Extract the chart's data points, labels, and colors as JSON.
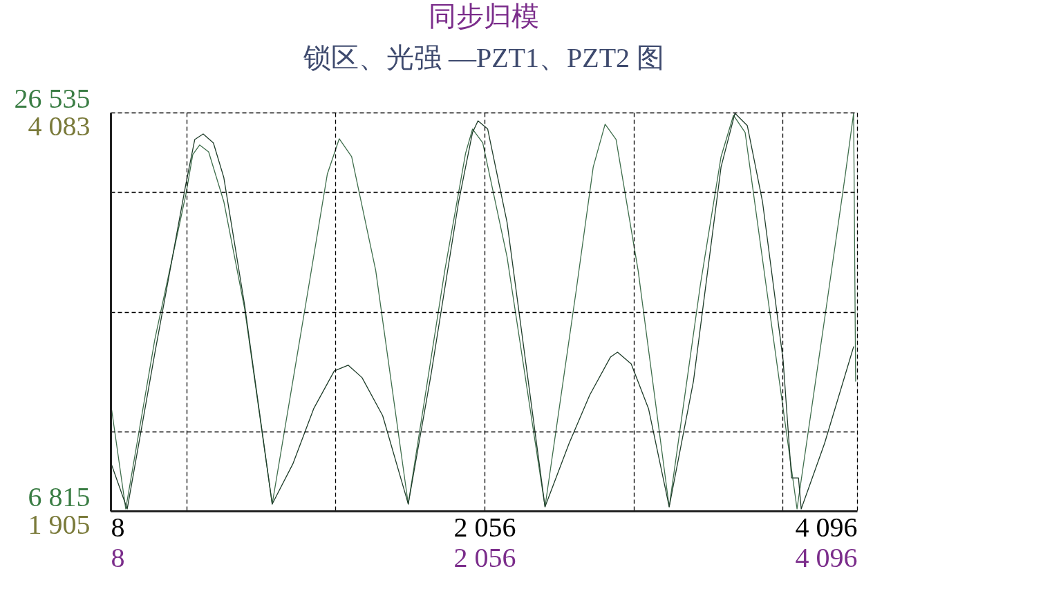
{
  "chart_data": {
    "type": "line",
    "title": "同步归模",
    "subtitle": "锁区、光强  —PZT1、PZT2 图",
    "xlim": [
      8,
      4096
    ],
    "xticks": [
      8,
      {
        "value": 424,
        "label": null
      },
      {
        "value": 1240,
        "label": null
      },
      {
        "value": 2056,
        "label": "2 056"
      },
      {
        "value": 2872,
        "label": null
      },
      {
        "value": 3688,
        "label": null
      },
      {
        "value": 4096,
        "label": "4 096"
      }
    ],
    "x2lim": [
      8,
      4096
    ],
    "x2ticks": [
      8,
      {
        "value": 2056,
        "label": "2 056"
      },
      {
        "value": 4096,
        "label": "4 096"
      }
    ],
    "ylim": [
      6815,
      26535
    ],
    "yticks": [
      {
        "value": 6815,
        "label": "6 815"
      },
      {
        "value": 10759,
        "label": null
      },
      {
        "value": 16675,
        "label": null
      },
      {
        "value": 22591,
        "label": null
      },
      {
        "value": 26535,
        "label": "26 535"
      }
    ],
    "y2lim": [
      1905,
      4083
    ],
    "y2ticks": [
      {
        "value": 1905,
        "label": "1 905"
      },
      {
        "value": 4083,
        "label": "4 083"
      }
    ],
    "grid": true,
    "series": [
      {
        "color": "#3f6e4c",
        "x": [
          12,
          91,
          250,
          420,
          458,
          496,
          545,
          628,
          742,
          893,
          1082,
          1195,
          1260,
          1328,
          1460,
          1638,
          1838,
          1952,
          1990,
          2046,
          2179,
          2387,
          2557,
          2651,
          2716,
          2776,
          2897,
          3067,
          3238,
          3351,
          3419,
          3483,
          3597,
          3767,
          3918,
          4032,
          4077,
          4088
        ],
        "values": [
          11942,
          6918,
          15292,
          22469,
          24451,
          24930,
          24588,
          22128,
          16830,
          7157,
          17342,
          23495,
          25238,
          24349,
          18710,
          7157,
          18710,
          24520,
          25716,
          25033,
          19393,
          7020,
          17684,
          23837,
          25956,
          25204,
          18710,
          7020,
          18026,
          24349,
          26400,
          25545,
          18026,
          6918,
          16317,
          23495,
          26503,
          13241
        ]
      },
      {
        "color": "#1f3d2a",
        "axis": "y2",
        "x": [
          12,
          99,
          250,
          420,
          469,
          515,
          571,
          628,
          742,
          893,
          1006,
          1120,
          1233,
          1309,
          1385,
          1498,
          1638,
          1763,
          1914,
          1990,
          2020,
          2073,
          2179,
          2387,
          2519,
          2632,
          2746,
          2784,
          2859,
          2954,
          3067,
          3200,
          3351,
          3427,
          3495,
          3578,
          3691,
          3737,
          3775,
          3790,
          3918,
          4077
        ],
        "values": [
          2162,
          1916,
          2766,
          3691,
          3936,
          3966,
          3917,
          3728,
          3030,
          1943,
          2162,
          2464,
          2671,
          2702,
          2634,
          2426,
          1943,
          2652,
          3596,
          3974,
          4038,
          3993,
          3483,
          1928,
          2275,
          2539,
          2747,
          2773,
          2709,
          2464,
          1928,
          2615,
          3785,
          4079,
          4011,
          3596,
          2728,
          2086,
          2086,
          1916,
          2275,
          2803
        ]
      }
    ]
  }
}
